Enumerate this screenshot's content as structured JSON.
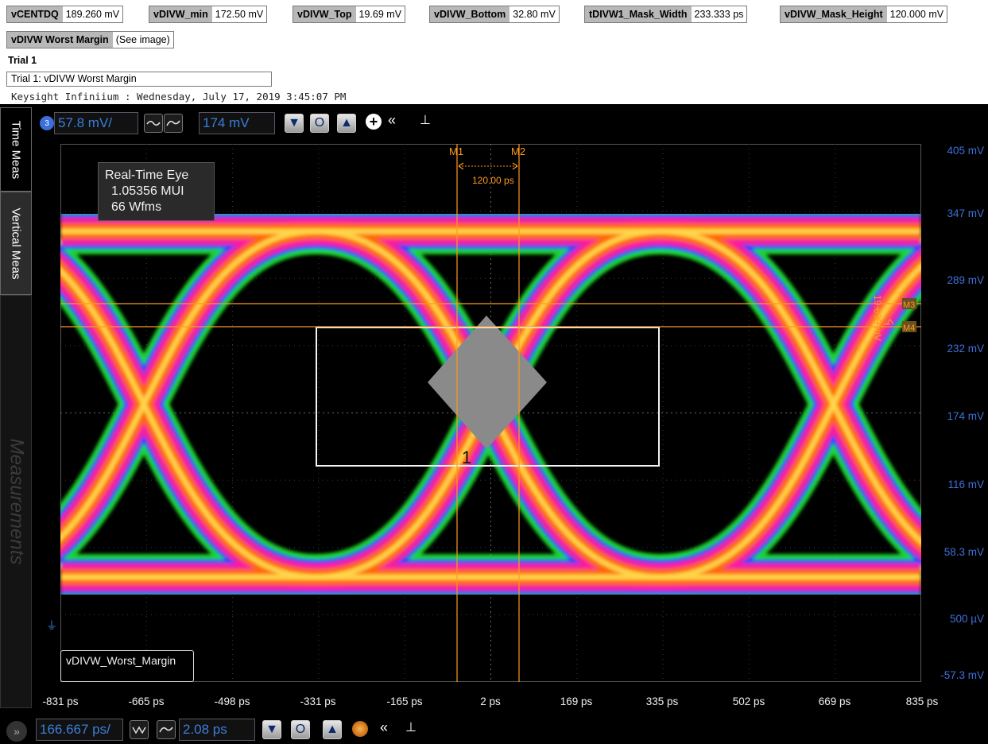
{
  "measurements": [
    {
      "name": "vCENTDQ",
      "value": "189.260 mV"
    },
    {
      "name": "vDIVW_min",
      "value": "172.50 mV"
    },
    {
      "name": "vDIVW_Top",
      "value": "19.69 mV"
    },
    {
      "name": "vDIVW_Bottom",
      "value": "32.80 mV"
    },
    {
      "name": "tDIVW1_Mask_Width",
      "value": "233.333 ps"
    },
    {
      "name": "vDIVW_Mask_Height",
      "value": "120.000 mV"
    },
    {
      "name": "vDIVW Worst Margin",
      "value": "(See image)"
    }
  ],
  "trial": {
    "heading": "Trial 1",
    "caption": "Trial 1: vDIVW Worst Margin"
  },
  "banner": "Keysight Infiniium : Wednesday, July 17, 2019 3:45:07 PM",
  "side_tabs": {
    "time": "Time Meas",
    "vertical": "Vertical Meas",
    "measurements": "Measurements"
  },
  "top_bar": {
    "channel": "3",
    "scale": "57.8 mV/",
    "offset": "174 mV"
  },
  "bottom_bar": {
    "scale": "166.667 ps/",
    "delay": "2.08 ps"
  },
  "eye_info": {
    "line1": "Real-Time Eye",
    "line2": "1.05356 MUI",
    "line3": "66 Wfms"
  },
  "markers": {
    "m1": "M1",
    "m2": "M2",
    "m3": "M3",
    "m4": "M4",
    "dt": "120.00 ps",
    "dv": "19.690 mV"
  },
  "mask_number": "1",
  "label_box": "vDIVW_Worst_Margin",
  "y_ticks": [
    "405 mV",
    "347 mV",
    "289 mV",
    "232 mV",
    "174 mV",
    "116 mV",
    "58.3 mV",
    "500 µV",
    "-57.3 mV"
  ],
  "x_ticks": [
    "-831 ps",
    "-665 ps",
    "-498 ps",
    "-331 ps",
    "-165 ps",
    "2 ps",
    "169 ps",
    "335 ps",
    "502 ps",
    "669 ps",
    "835 ps"
  ],
  "colors": {
    "marker": "#ff9a1e",
    "axis_label": "#3d70d8",
    "trace_hot": "#ffd84a",
    "trace_mid": "#ff6a00",
    "trace_low": "#ff1a9a",
    "trace_edge": "#2a40ff",
    "trace_sparse": "#1fd82b"
  }
}
